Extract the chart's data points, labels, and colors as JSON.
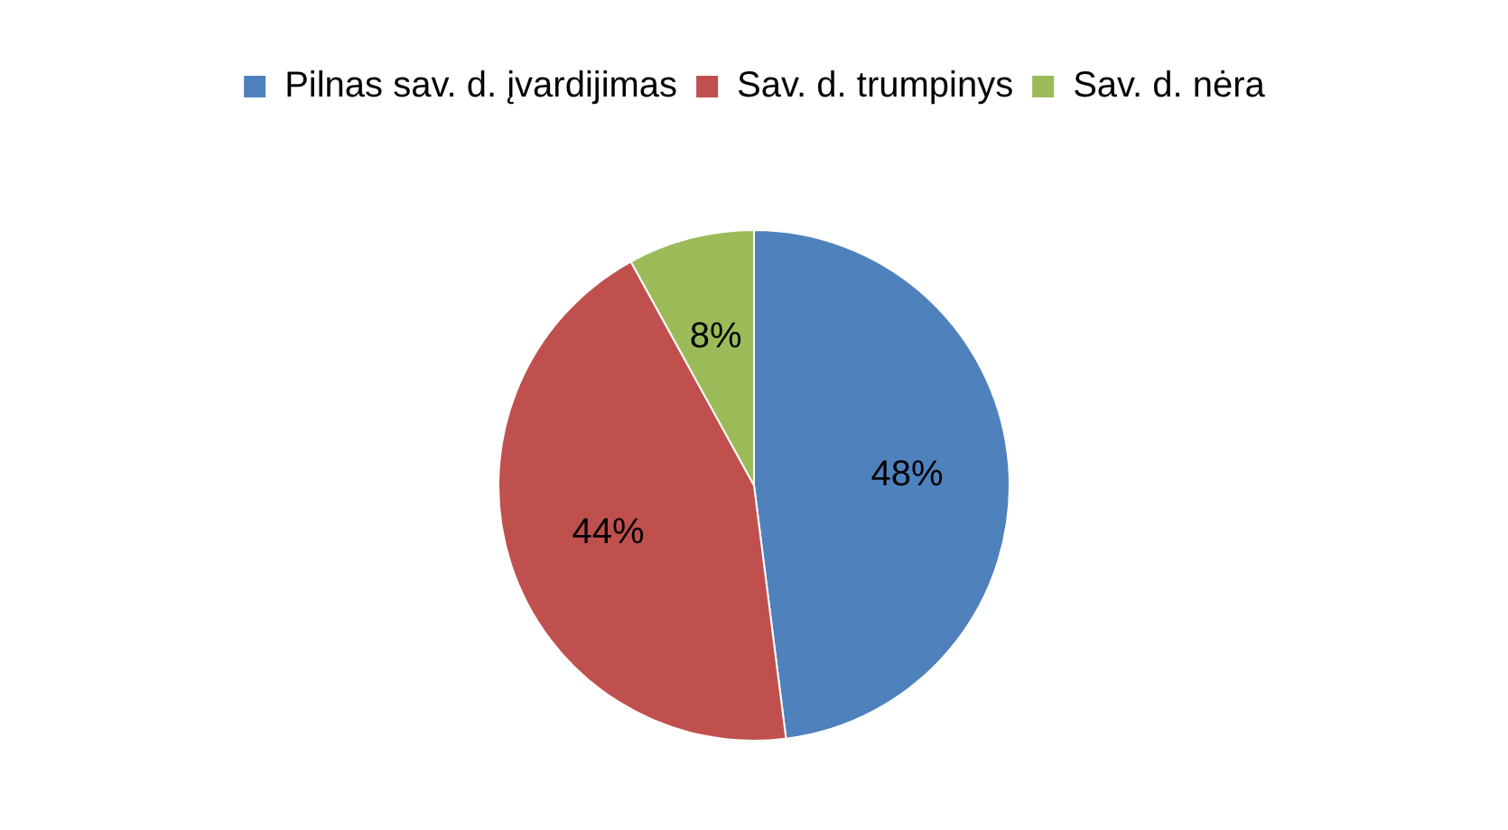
{
  "chart_data": {
    "type": "pie",
    "categories": [
      "Pilnas sav. d. įvardijimas",
      "Sav. d. trumpinys",
      "Sav. d. nėra"
    ],
    "values": [
      48,
      44,
      8
    ],
    "colors": [
      "#4f81bd",
      "#c0504d",
      "#9bbb59"
    ],
    "value_labels": [
      "48%",
      "44%",
      "8%"
    ],
    "legend": "top"
  }
}
